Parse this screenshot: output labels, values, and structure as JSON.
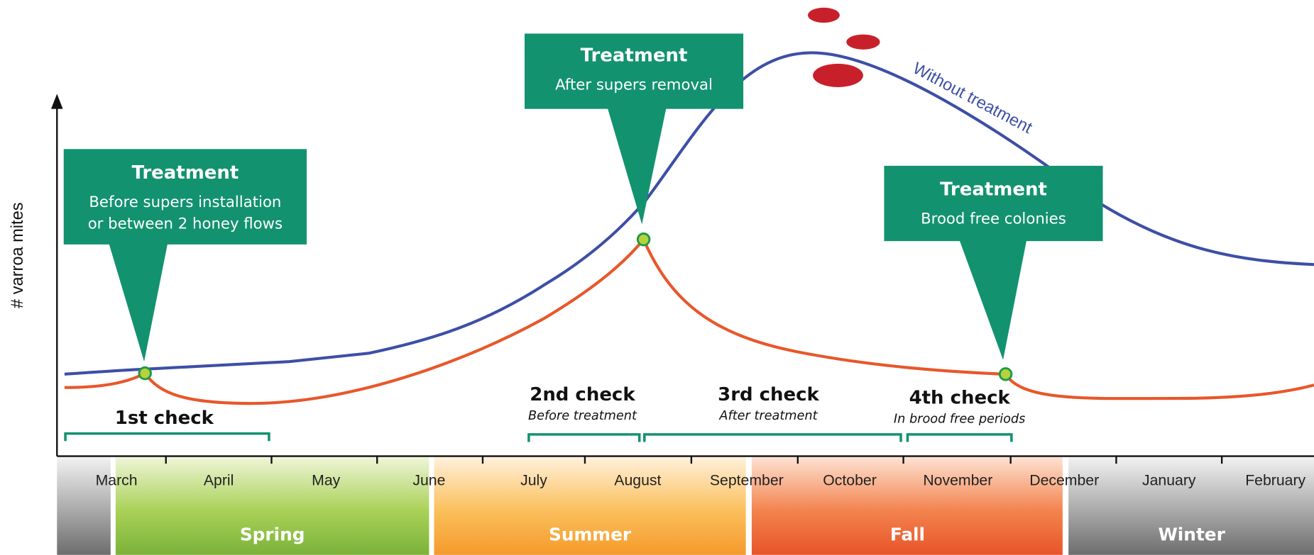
{
  "y_axis_label": "# varroa mites",
  "curve_label": "Without treatment",
  "treatments": [
    {
      "title": "Treatment",
      "lines": [
        "Before supers installation",
        "or between 2 honey flows"
      ]
    },
    {
      "title": "Treatment",
      "lines": [
        "After supers removal"
      ]
    },
    {
      "title": "Treatment",
      "lines": [
        "Brood free colonies"
      ]
    }
  ],
  "checks": [
    {
      "title": "1st check"
    },
    {
      "title": "2nd check",
      "subtitle": "Before treatment"
    },
    {
      "title": "3rd check",
      "subtitle": "After treatment"
    },
    {
      "title": "4th check",
      "subtitle": "In brood free periods"
    }
  ],
  "months": [
    "March",
    "April",
    "May",
    "June",
    "July",
    "August",
    "September",
    "October",
    "November",
    "December",
    "January",
    "February"
  ],
  "seasons": [
    "Spring",
    "Summer",
    "Fall",
    "Winter"
  ]
}
